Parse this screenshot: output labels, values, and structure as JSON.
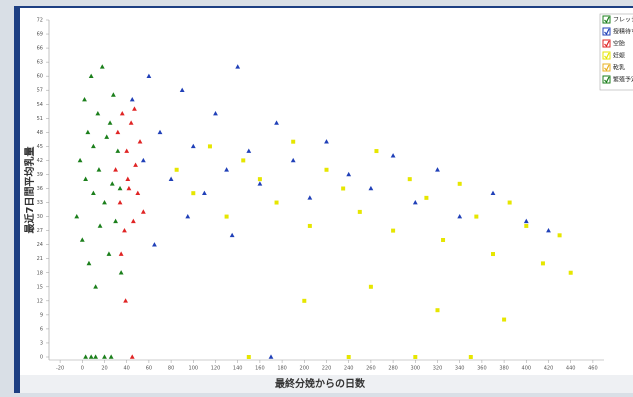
{
  "chart_data": {
    "type": "scatter",
    "x_label": "最終分娩からの日数",
    "y_label": "最近7日間平均乳量",
    "xlim": [
      -30,
      470
    ],
    "xticks": [
      -20,
      0,
      20,
      40,
      60,
      80,
      100,
      120,
      140,
      160,
      180,
      200,
      220,
      240,
      260,
      280,
      300,
      320,
      340,
      360,
      380,
      400,
      420,
      440,
      460
    ],
    "ylim": [
      0,
      72
    ],
    "yticks": [
      0,
      3,
      6,
      9,
      12,
      15,
      18,
      21,
      24,
      27,
      30,
      33,
      36,
      39,
      42,
      45,
      48,
      51,
      54,
      57,
      60,
      63,
      66,
      69,
      72
    ],
    "legend": "top-right",
    "series": [
      {
        "name": "フレッシュ",
        "color": "#1b7f1b",
        "marker": "triangle",
        "x": [
          -5,
          -2,
          0,
          2,
          3,
          5,
          6,
          8,
          10,
          10,
          12,
          14,
          15,
          16,
          18,
          20,
          22,
          24,
          25,
          27,
          28,
          30,
          32,
          34,
          35,
          12,
          8,
          20,
          3,
          26
        ],
        "values": [
          30,
          42,
          25,
          55,
          38,
          48,
          20,
          60,
          35,
          45,
          15,
          52,
          40,
          28,
          62,
          33,
          47,
          22,
          50,
          37,
          56,
          29,
          44,
          36,
          18,
          0,
          0,
          0,
          0,
          0
        ]
      },
      {
        "name": "授精待ち",
        "color": "#2040b8",
        "marker": "triangle",
        "x": [
          45,
          55,
          60,
          70,
          80,
          90,
          100,
          110,
          120,
          130,
          140,
          150,
          160,
          175,
          190,
          205,
          220,
          240,
          260,
          280,
          300,
          320,
          340,
          370,
          400,
          420,
          65,
          95,
          135,
          170
        ],
        "values": [
          55,
          42,
          60,
          48,
          38,
          57,
          45,
          35,
          52,
          40,
          62,
          44,
          37,
          50,
          42,
          34,
          46,
          39,
          36,
          43,
          33,
          40,
          30,
          35,
          29,
          27,
          24,
          30,
          26,
          0
        ]
      },
      {
        "name": "空胎",
        "color": "#e02424",
        "marker": "triangle",
        "x": [
          30,
          32,
          34,
          36,
          38,
          40,
          42,
          44,
          46,
          48,
          50,
          52,
          35,
          41,
          47,
          45,
          39,
          55
        ],
        "values": [
          40,
          48,
          33,
          52,
          27,
          44,
          36,
          50,
          29,
          41,
          35,
          46,
          22,
          38,
          53,
          0,
          12,
          31
        ]
      },
      {
        "name": "妊娠",
        "color": "#e6e600",
        "marker": "square",
        "x": [
          85,
          100,
          115,
          130,
          145,
          160,
          175,
          190,
          205,
          220,
          235,
          250,
          265,
          280,
          295,
          310,
          325,
          340,
          355,
          370,
          385,
          400,
          415,
          430,
          440,
          200,
          260,
          320,
          380,
          150,
          240,
          300,
          350
        ],
        "values": [
          40,
          35,
          45,
          30,
          42,
          38,
          33,
          46,
          28,
          40,
          36,
          31,
          44,
          27,
          38,
          34,
          25,
          37,
          30,
          22,
          33,
          28,
          20,
          26,
          18,
          12,
          15,
          10,
          8,
          0,
          0,
          0,
          0
        ]
      },
      {
        "name": "乾乳",
        "color": "#e8b020",
        "marker": "square",
        "x": [],
        "values": []
      },
      {
        "name": "繁殖予定",
        "color": "#1b7f1b",
        "marker": "triangle",
        "x": [],
        "values": []
      }
    ]
  }
}
